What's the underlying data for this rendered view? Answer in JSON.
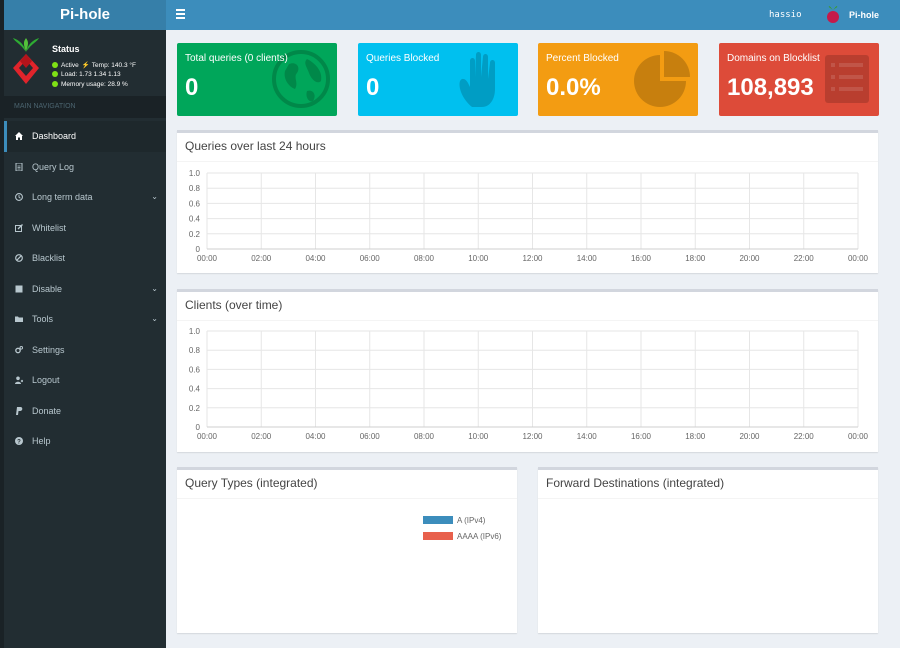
{
  "header": {
    "logo": "Pi-hole",
    "user": "hassio",
    "brand": "Pi-hole"
  },
  "sidebar": {
    "status": {
      "title": "Status",
      "active": "Active",
      "temp": "Temp: 140.3 °F",
      "load": "Load:  1.73  1.34  1.13",
      "memory": "Memory usage:  28.9 %"
    },
    "nav_header": "MAIN NAVIGATION",
    "items": [
      {
        "label": "Dashboard",
        "icon": "home-icon"
      },
      {
        "label": "Query Log",
        "icon": "file-text-icon"
      },
      {
        "label": "Long term data",
        "icon": "history-icon"
      },
      {
        "label": "Whitelist",
        "icon": "pencil-square-icon"
      },
      {
        "label": "Blacklist",
        "icon": "ban-icon"
      },
      {
        "label": "Disable",
        "icon": "stop-icon"
      },
      {
        "label": "Tools",
        "icon": "folder-icon"
      },
      {
        "label": "Settings",
        "icon": "gears-icon"
      },
      {
        "label": "Logout",
        "icon": "user-times-icon"
      },
      {
        "label": "Donate",
        "icon": "paypal-icon"
      },
      {
        "label": "Help",
        "icon": "question-circle-icon"
      }
    ]
  },
  "stats": [
    {
      "label": "Total queries (0 clients)",
      "value": "0",
      "color": "#00a65a",
      "icon": "globe-icon"
    },
    {
      "label": "Queries Blocked",
      "value": "0",
      "color": "#00c0ef",
      "icon": "hand-icon"
    },
    {
      "label": "Percent Blocked",
      "value": "0.0%",
      "color": "#f39c12",
      "icon": "pie-chart-icon"
    },
    {
      "label": "Domains on Blocklist",
      "value": "108,893",
      "color": "#dd4b39",
      "icon": "list-icon"
    }
  ],
  "panels": {
    "queries_title": "Queries over last 24 hours",
    "clients_title": "Clients (over time)",
    "query_types_title": "Query Types (integrated)",
    "forward_title": "Forward Destinations (integrated)"
  },
  "legend": [
    {
      "label": "A (IPv4)",
      "color": "#3c8dbc"
    },
    {
      "label": "AAAA (IPv6)",
      "color": "#e8604c"
    }
  ],
  "chart_data": [
    {
      "type": "area",
      "title": "Queries over last 24 hours",
      "x": [
        "00:00",
        "02:00",
        "04:00",
        "06:00",
        "08:00",
        "10:00",
        "12:00",
        "14:00",
        "16:00",
        "18:00",
        "20:00",
        "22:00",
        "00:00"
      ],
      "yticks": [
        "1.0",
        "0.8",
        "0.6",
        "0.4",
        "0.2",
        "0"
      ],
      "ylim": [
        0,
        1
      ],
      "series": [],
      "grid": true
    },
    {
      "type": "area",
      "title": "Clients (over time)",
      "x": [
        "00:00",
        "02:00",
        "04:00",
        "06:00",
        "08:00",
        "10:00",
        "12:00",
        "14:00",
        "16:00",
        "18:00",
        "20:00",
        "22:00",
        "00:00"
      ],
      "yticks": [
        "1.0",
        "0.8",
        "0.6",
        "0.4",
        "0.2",
        "0"
      ],
      "ylim": [
        0,
        1
      ],
      "series": [],
      "grid": true
    }
  ]
}
